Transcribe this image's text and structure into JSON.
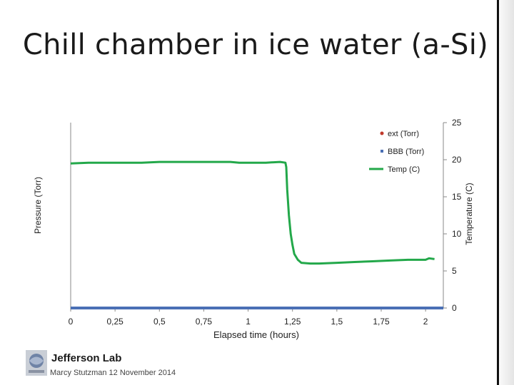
{
  "slide": {
    "title": "Chill chamber in ice water (a-Si)",
    "logo_text": "Jefferson Lab",
    "credit": "Marcy Stutzman 12 November 2014"
  },
  "chart_data": {
    "type": "line",
    "title": "",
    "xlabel": "Elapsed time (hours)",
    "ylabel": "Pressure (Torr)",
    "y2label": "Temperature (C)",
    "xlim": [
      0,
      2.1
    ],
    "x_ticks": [
      "0",
      "0,25",
      "0,5",
      "0,75",
      "1",
      "1,25",
      "1,5",
      "1,75",
      "2"
    ],
    "x_tick_values": [
      0,
      0.25,
      0.5,
      0.75,
      1,
      1.25,
      1.5,
      1.75,
      2
    ],
    "y2lim": [
      0,
      25
    ],
    "y2_ticks": [
      "0",
      "5",
      "10",
      "15",
      "20",
      "25"
    ],
    "y2_tick_values": [
      0,
      5,
      10,
      15,
      20,
      25
    ],
    "legend_position": "top-right",
    "grid": false,
    "series": [
      {
        "name": "ext (Torr)",
        "marker": "dot",
        "color": "#c0392b",
        "axis": "left",
        "x": [],
        "y": []
      },
      {
        "name": "BBB (Torr)",
        "marker": "square",
        "color": "#4a6fb5",
        "axis": "left",
        "x": [
          0,
          2.1
        ],
        "y": [
          0,
          0
        ]
      },
      {
        "name": "Temp (C)",
        "marker": "line",
        "color": "#23a84a",
        "axis": "right",
        "x": [
          0,
          0.1,
          0.2,
          0.3,
          0.4,
          0.5,
          0.6,
          0.7,
          0.8,
          0.9,
          0.95,
          1.0,
          1.1,
          1.18,
          1.21,
          1.215,
          1.22,
          1.23,
          1.24,
          1.25,
          1.26,
          1.28,
          1.3,
          1.35,
          1.4,
          1.5,
          1.6,
          1.7,
          1.8,
          1.9,
          1.95,
          2.0,
          2.02,
          2.05
        ],
        "y": [
          19.5,
          19.6,
          19.6,
          19.6,
          19.6,
          19.7,
          19.7,
          19.7,
          19.7,
          19.7,
          19.6,
          19.6,
          19.6,
          19.7,
          19.6,
          19.0,
          16.0,
          12.5,
          10.0,
          8.5,
          7.3,
          6.5,
          6.1,
          6.0,
          6.0,
          6.1,
          6.2,
          6.3,
          6.4,
          6.5,
          6.5,
          6.5,
          6.7,
          6.6
        ]
      }
    ]
  }
}
